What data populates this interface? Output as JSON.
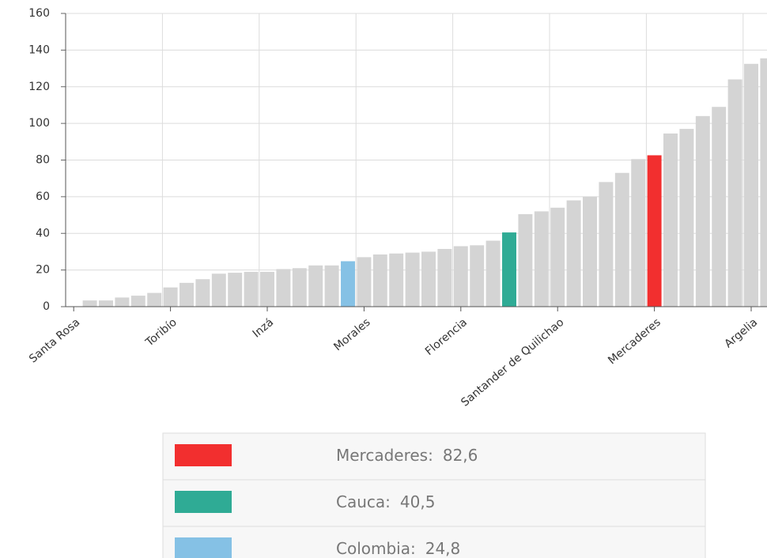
{
  "chart_data": {
    "type": "bar",
    "categories": [
      "Santa Rosa",
      null,
      null,
      null,
      null,
      null,
      "Toribío",
      null,
      null,
      null,
      null,
      null,
      "Inzá",
      null,
      null,
      null,
      null,
      null,
      "Morales",
      null,
      null,
      null,
      null,
      null,
      "Florencia",
      null,
      null,
      null,
      null,
      null,
      "Santander de Quilichao",
      null,
      null,
      null,
      null,
      null,
      "Mercaderes",
      null,
      null,
      null,
      null,
      null,
      "Argelia",
      null
    ],
    "values": [
      0,
      3.4,
      3.4,
      5,
      6,
      7.5,
      10.5,
      13,
      15,
      18,
      18.5,
      19,
      19,
      20.5,
      21,
      22.5,
      22.5,
      24.8,
      27,
      28.5,
      29,
      29.5,
      30,
      31.5,
      33,
      33.5,
      36,
      40.5,
      50.5,
      52,
      54,
      58,
      60,
      68,
      73,
      80.5,
      82.6,
      94.5,
      97,
      104,
      109,
      124,
      132.5,
      135.5
    ],
    "color": "#d4d4d4",
    "ylim": [
      0,
      160
    ],
    "yticks": [
      0,
      20,
      40,
      60,
      80,
      100,
      120,
      140,
      160
    ],
    "grid": true,
    "legend": [
      {
        "label": "Mercaderes:",
        "value": 82.6,
        "value_label": "82,6",
        "color": "#f22f2f"
      },
      {
        "label": "Cauca:",
        "value": 40.5,
        "value_label": "40,5",
        "color": "#2fab95"
      },
      {
        "label": "Colombia:",
        "value": 24.8,
        "value_label": "24,8",
        "color": "#85c1e5"
      }
    ]
  }
}
